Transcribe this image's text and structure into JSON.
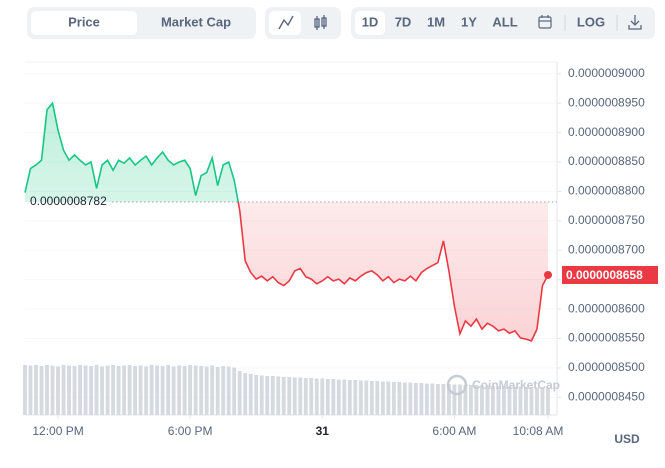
{
  "toolbar": {
    "tabs": [
      "Price",
      "Market Cap"
    ],
    "ranges": [
      "1D",
      "7D",
      "1M",
      "1Y",
      "ALL"
    ],
    "log": "LOG"
  },
  "chart_data": {
    "type": "line",
    "categories": [
      null,
      null,
      null,
      null,
      null,
      null,
      "12:00 PM",
      null,
      null,
      null,
      null,
      null,
      null,
      null,
      null,
      null,
      null,
      null,
      null,
      null,
      null,
      null,
      null,
      null,
      null,
      null,
      null,
      null,
      null,
      null,
      "6:00 PM",
      null,
      null,
      null,
      null,
      null,
      null,
      null,
      null,
      null,
      null,
      null,
      null,
      null,
      null,
      null,
      null,
      null,
      null,
      null,
      null,
      null,
      null,
      null,
      "31",
      null,
      null,
      null,
      null,
      null,
      null,
      null,
      null,
      null,
      null,
      null,
      null,
      null,
      null,
      null,
      null,
      null,
      null,
      null,
      null,
      null,
      null,
      null,
      "6:00 AM",
      null,
      null,
      null,
      null,
      null,
      null,
      null,
      null,
      null,
      null,
      null,
      null,
      null,
      null,
      null,
      null,
      "10:08 AM"
    ],
    "values": [
      8.798e-07,
      8.839e-07,
      8.845e-07,
      8.853e-07,
      8.939e-07,
      8.95e-07,
      8.904e-07,
      8.87e-07,
      8.853e-07,
      8.862e-07,
      8.853e-07,
      8.845e-07,
      8.85e-07,
      8.805e-07,
      8.845e-07,
      8.853e-07,
      8.836e-07,
      8.853e-07,
      8.848e-07,
      8.857e-07,
      8.845e-07,
      8.853e-07,
      8.86e-07,
      8.845e-07,
      8.857e-07,
      8.867e-07,
      8.853e-07,
      8.845e-07,
      8.85e-07,
      8.853e-07,
      8.839e-07,
      8.793e-07,
      8.827e-07,
      8.832e-07,
      8.857e-07,
      8.81e-07,
      8.845e-07,
      8.85e-07,
      8.819e-07,
      8.768e-07,
      8.682e-07,
      8.662e-07,
      8.651e-07,
      8.656e-07,
      8.648e-07,
      8.655e-07,
      8.645e-07,
      8.64e-07,
      8.648e-07,
      8.665e-07,
      8.669e-07,
      8.655e-07,
      8.651e-07,
      8.643e-07,
      8.648e-07,
      8.655e-07,
      8.648e-07,
      8.651e-07,
      8.643e-07,
      8.653e-07,
      8.648e-07,
      8.656e-07,
      8.662e-07,
      8.665e-07,
      8.658e-07,
      8.648e-07,
      8.655e-07,
      8.645e-07,
      8.651e-07,
      8.648e-07,
      8.656e-07,
      8.648e-07,
      8.662e-07,
      8.669e-07,
      8.674e-07,
      8.679e-07,
      8.716e-07,
      8.665e-07,
      8.605e-07,
      8.558e-07,
      8.58e-07,
      8.571e-07,
      8.583e-07,
      8.566e-07,
      8.576e-07,
      8.571e-07,
      8.563e-07,
      8.566e-07,
      8.559e-07,
      8.563e-07,
      8.551e-07,
      8.549e-07,
      8.546e-07,
      8.566e-07,
      8.64e-07,
      8.658e-07
    ],
    "value_labels": [
      null,
      null,
      null,
      null,
      null,
      null,
      null,
      null,
      null,
      null,
      null,
      null,
      null,
      null,
      null,
      null,
      null,
      null,
      null,
      null,
      null,
      null,
      null,
      null,
      null,
      null,
      null,
      null,
      null,
      null,
      null,
      null,
      null,
      null,
      null,
      null,
      null,
      null,
      null,
      null,
      null,
      null,
      null,
      null,
      null,
      null,
      null,
      null,
      null,
      null,
      null,
      null,
      null,
      null,
      null,
      null,
      null,
      null,
      null,
      null,
      null,
      null,
      null,
      null,
      null,
      null,
      null,
      null,
      null,
      null,
      null,
      null,
      null,
      null,
      null,
      null,
      null,
      null,
      null,
      null,
      null,
      null,
      null,
      null,
      null,
      null,
      null,
      null,
      null,
      null,
      null,
      null,
      null,
      null,
      null,
      "0.0000008658"
    ],
    "volume": [
      100,
      99,
      100,
      98,
      100,
      99,
      97,
      100,
      99,
      98,
      100,
      99,
      98,
      100,
      97,
      99,
      100,
      98,
      99,
      100,
      98,
      99,
      97,
      100,
      99,
      98,
      100,
      97,
      99,
      98,
      100,
      99,
      98,
      97,
      99,
      96,
      98,
      97,
      95,
      88,
      84,
      82,
      80,
      79,
      78,
      78,
      77,
      76,
      76,
      75,
      75,
      74,
      74,
      73,
      73,
      72,
      72,
      71,
      71,
      70,
      70,
      69,
      69,
      68,
      68,
      67,
      67,
      66,
      66,
      65,
      65,
      64,
      64,
      63,
      63,
      62,
      62,
      62,
      61,
      61,
      60,
      60,
      60,
      59,
      59,
      58,
      58,
      58,
      57,
      57,
      57,
      56,
      56,
      55,
      55,
      55
    ],
    "reference": {
      "value": 8.782e-07,
      "label": "0.0000008782"
    },
    "up_color": "#16c784",
    "down_color": "#ea3943",
    "volume_color": "#d5d9e0",
    "ylim": [
      8.42e-07,
      9.02e-07
    ],
    "yticks": [
      {
        "value": 8.45e-07,
        "label": "0.0000008450"
      },
      {
        "value": 8.5e-07,
        "label": "0.0000008500"
      },
      {
        "value": 8.55e-07,
        "label": "0.0000008550"
      },
      {
        "value": 8.6e-07,
        "label": "0.0000008600"
      },
      {
        "value": 8.65e-07,
        "label": "0.0000008650"
      },
      {
        "value": 8.7e-07,
        "label": "0.0000008700"
      },
      {
        "value": 8.75e-07,
        "label": "0.0000008750"
      },
      {
        "value": 8.8e-07,
        "label": "0.0000008800"
      },
      {
        "value": 8.85e-07,
        "label": "0.0000008850"
      },
      {
        "value": 8.9e-07,
        "label": "0.0000008900"
      },
      {
        "value": 8.95e-07,
        "label": "0.0000008950"
      },
      {
        "value": 9e-07,
        "label": "0.0000009000"
      }
    ],
    "grid": true,
    "watermark": "CoinMarketCap",
    "currency": "USD"
  }
}
